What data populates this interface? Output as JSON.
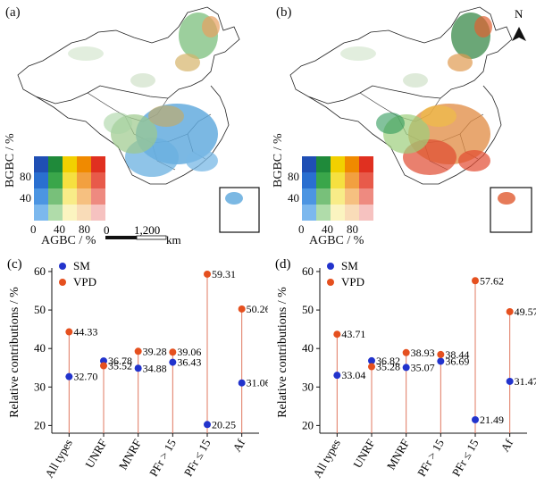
{
  "panels": {
    "a": "(a)",
    "b": "(b)",
    "c": "(c)",
    "d": "(d)"
  },
  "maps": {
    "legend_y_label": "BGBC / %",
    "legend_x_label": "AGBC / %",
    "legend_ticks": [
      "0",
      "40",
      "80"
    ],
    "legend_y_ticks": [
      "40",
      "80"
    ],
    "scale_left": "0",
    "scale_right": "1,200",
    "scale_unit": "km",
    "north": "N",
    "colors": {
      "legend_grid": [
        [
          "#1f4fb4",
          "#1f8a3a",
          "#f2d000",
          "#f08a00",
          "#e03020"
        ],
        [
          "#2a6fd0",
          "#3aa64a",
          "#f6e040",
          "#f2a040",
          "#e85a4a"
        ],
        [
          "#4c95e2",
          "#78c07a",
          "#f8ec88",
          "#f6c080",
          "#ee8a80"
        ],
        [
          "#7cb8ee",
          "#b0dcaa",
          "#fbf4c0",
          "#f9dcb8",
          "#f6c2c0"
        ]
      ]
    }
  },
  "chart_data": [
    {
      "type": "scatter",
      "panel": "c",
      "ylabel": "Relative contributions / %",
      "ylim": [
        18,
        60
      ],
      "yticks": [
        20,
        30,
        40,
        50,
        60
      ],
      "categories": [
        "All types",
        "UNRF",
        "MNRF",
        "PFr > 15",
        "PFr ≤ 15",
        "Af"
      ],
      "series": [
        {
          "name": "SM",
          "color": "#2233cc",
          "values": [
            32.7,
            36.78,
            34.88,
            36.43,
            20.25,
            31.06
          ],
          "labels": [
            "32.70",
            "36.78",
            "34.88",
            "36.43",
            "20.25",
            "31.06"
          ]
        },
        {
          "name": "VPD",
          "color": "#e5501f",
          "values": [
            44.33,
            35.52,
            39.28,
            39.06,
            59.31,
            50.26
          ],
          "labels": [
            "44.33",
            "35.52",
            "39.28",
            "39.06",
            "59.31",
            "50.26"
          ]
        }
      ],
      "legend": "top-left"
    },
    {
      "type": "scatter",
      "panel": "d",
      "ylabel": "Relative contributions / %",
      "ylim": [
        18,
        60
      ],
      "yticks": [
        20,
        30,
        40,
        50,
        60
      ],
      "categories": [
        "All types",
        "UNRF",
        "MNRF",
        "PFr > 15",
        "PFr ≤ 15",
        "Af"
      ],
      "series": [
        {
          "name": "SM",
          "color": "#2233cc",
          "values": [
            33.04,
            36.82,
            35.07,
            36.69,
            21.49,
            31.47
          ],
          "labels": [
            "33.04",
            "36.82",
            "35.07",
            "36.69",
            "21.49",
            "31.47"
          ]
        },
        {
          "name": "VPD",
          "color": "#e5501f",
          "values": [
            43.71,
            35.28,
            38.93,
            38.44,
            57.62,
            49.57
          ],
          "labels": [
            "43.71",
            "35.28",
            "38.93",
            "38.44",
            "57.62",
            "49.57"
          ]
        }
      ],
      "legend": "top-left"
    }
  ]
}
